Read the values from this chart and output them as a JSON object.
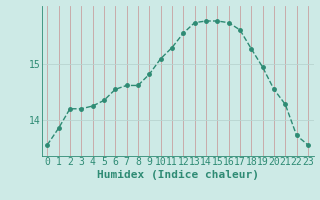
{
  "xlabel": "Humidex (Indice chaleur)",
  "ylabel": "",
  "x": [
    0,
    1,
    2,
    3,
    4,
    5,
    6,
    7,
    8,
    9,
    10,
    11,
    12,
    13,
    14,
    15,
    16,
    17,
    18,
    19,
    20,
    21,
    22,
    23
  ],
  "y": [
    13.55,
    13.85,
    14.2,
    14.2,
    14.25,
    14.35,
    14.55,
    14.62,
    14.62,
    14.82,
    15.1,
    15.3,
    15.56,
    15.75,
    15.78,
    15.78,
    15.75,
    15.62,
    15.28,
    14.95,
    14.55,
    14.28,
    13.72,
    13.55
  ],
  "line_color": "#2e8b74",
  "marker_color": "#2e8b74",
  "bg_color": "#cdeae6",
  "grid_color_v": "#c8a0a0",
  "grid_color_h": "#b8d4d0",
  "tick_color": "#2e8b74",
  "label_color": "#2e8b74",
  "ylim": [
    13.35,
    16.05
  ],
  "yticks": [
    14,
    15
  ],
  "xlim": [
    -0.5,
    23.5
  ],
  "xticks": [
    0,
    1,
    2,
    3,
    4,
    5,
    6,
    7,
    8,
    9,
    10,
    11,
    12,
    13,
    14,
    15,
    16,
    17,
    18,
    19,
    20,
    21,
    22,
    23
  ],
  "linewidth": 1.0,
  "markersize": 2.5,
  "xlabel_fontsize": 8,
  "tick_fontsize": 7
}
